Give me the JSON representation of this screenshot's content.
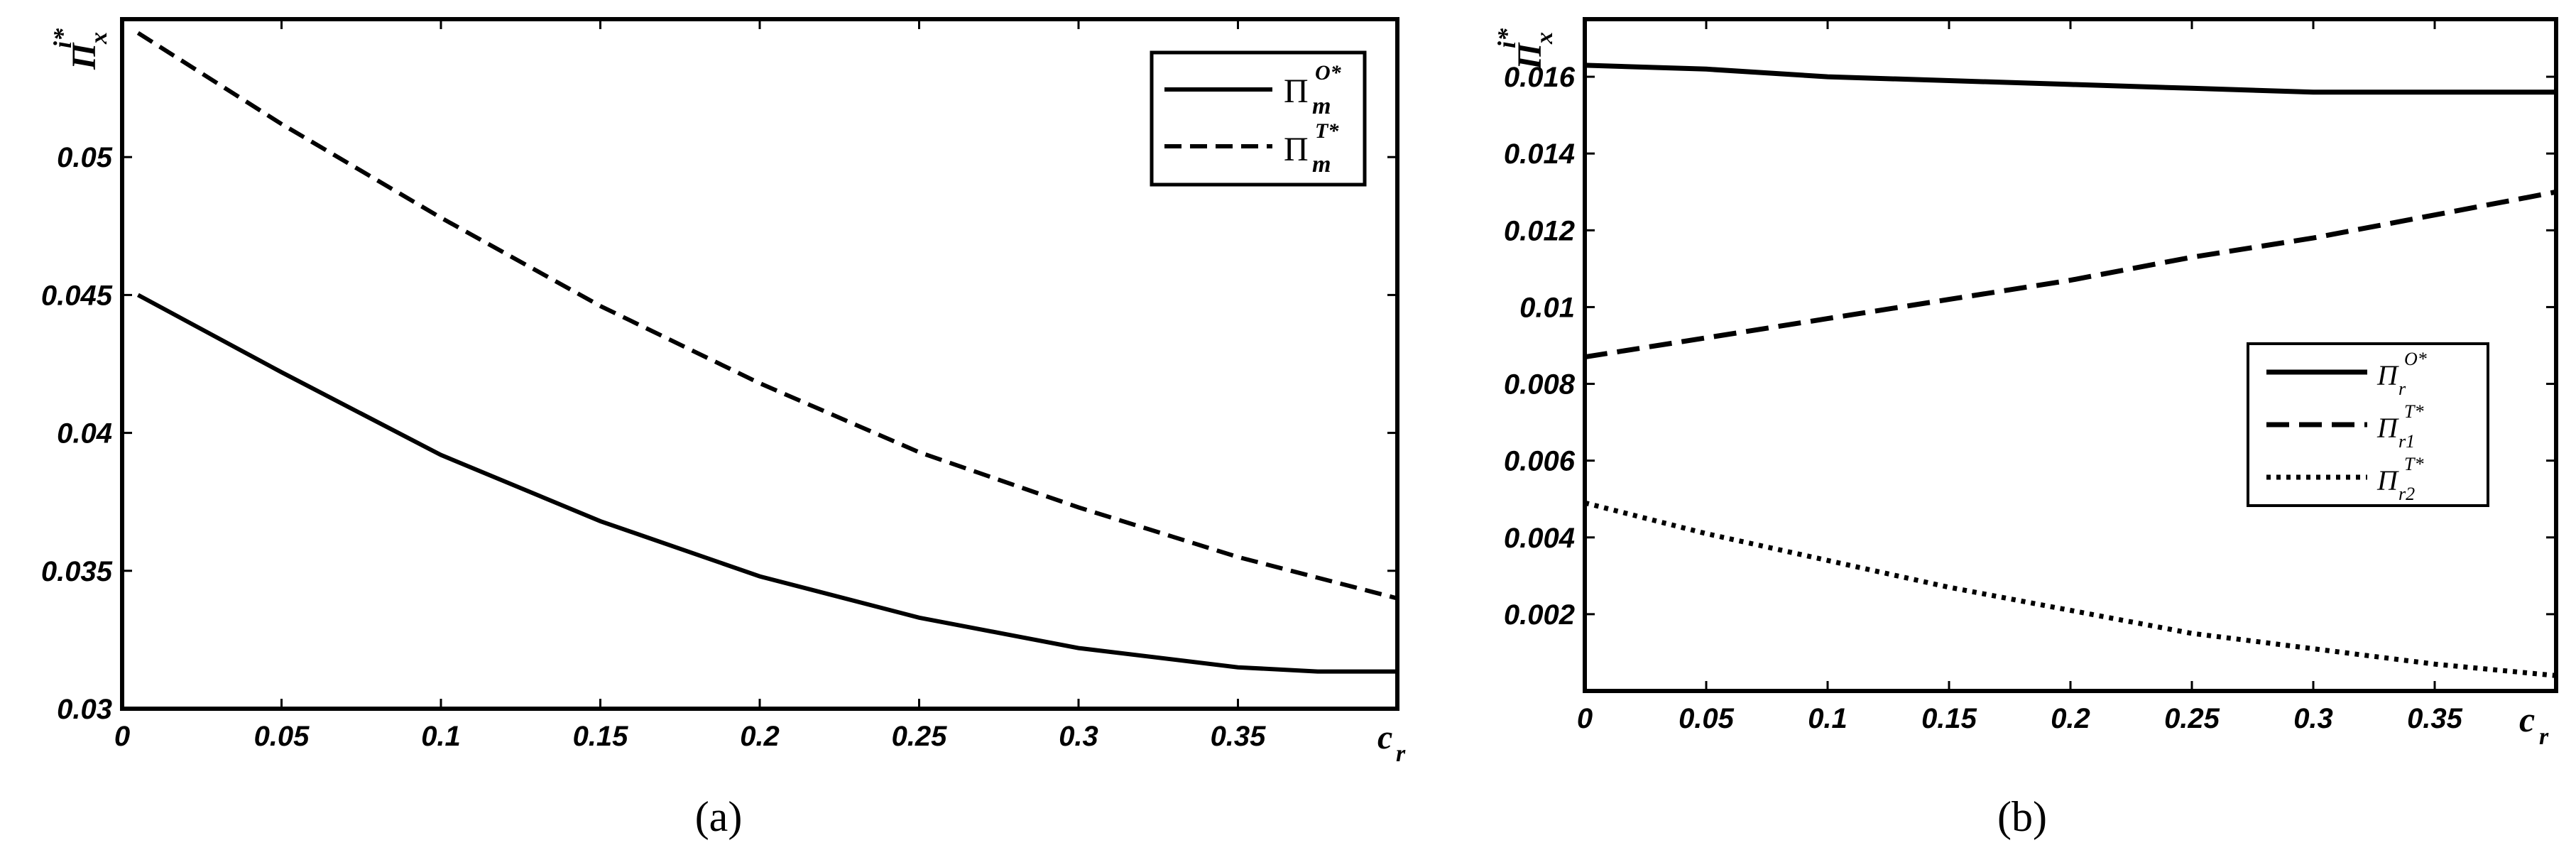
{
  "chart_data": [
    {
      "type": "line",
      "caption": "(a)",
      "xlabel": "c",
      "xlabel_sub": "r",
      "ylabel": "Π",
      "ylabel_sup": "i*",
      "ylabel_sub": "x",
      "xlim": [
        0,
        0.4
      ],
      "ylim": [
        0.03,
        0.055
      ],
      "xticks": [
        0,
        0.05,
        0.1,
        0.15,
        0.2,
        0.25,
        0.3,
        0.35
      ],
      "xtick_labels": [
        "0",
        "0.05",
        "0.1",
        "0.15",
        "0.2",
        "0.25",
        "0.3",
        "0.35"
      ],
      "yticks": [
        0.03,
        0.035,
        0.04,
        0.045,
        0.05
      ],
      "ytick_labels": [
        "0.03",
        "0.035",
        "0.04",
        "0.045",
        "0.05"
      ],
      "legend_position": "top-right",
      "series": [
        {
          "label": "Π",
          "label_sup": "O*",
          "label_sub": "m",
          "style": "solid",
          "x": [
            0.005,
            0.05,
            0.1,
            0.15,
            0.2,
            0.25,
            0.3,
            0.35,
            0.375,
            0.4
          ],
          "y": [
            0.045,
            0.0422,
            0.0392,
            0.0368,
            0.0348,
            0.0333,
            0.0322,
            0.0315,
            0.03135,
            0.03135
          ]
        },
        {
          "label": "Π",
          "label_sup": "T*",
          "label_sub": "m",
          "style": "dashed",
          "x": [
            0.005,
            0.05,
            0.1,
            0.15,
            0.2,
            0.25,
            0.3,
            0.35,
            0.4
          ],
          "y": [
            0.0545,
            0.0512,
            0.0478,
            0.0446,
            0.0418,
            0.0393,
            0.0373,
            0.0355,
            0.034
          ]
        }
      ]
    },
    {
      "type": "line",
      "caption": "(b)",
      "xlabel": "c",
      "xlabel_sub": "r",
      "ylabel": "Π",
      "ylabel_sup": "i*",
      "ylabel_sub": "x",
      "xlim": [
        0,
        0.4
      ],
      "ylim": [
        0,
        0.0175
      ],
      "xticks": [
        0,
        0.05,
        0.1,
        0.15,
        0.2,
        0.25,
        0.3,
        0.35
      ],
      "xtick_labels": [
        "0",
        "0.05",
        "0.1",
        "0.15",
        "0.2",
        "0.25",
        "0.3",
        "0.35"
      ],
      "yticks": [
        0.002,
        0.004,
        0.006,
        0.008,
        0.01,
        0.012,
        0.014,
        0.016
      ],
      "ytick_labels": [
        "0.002",
        "0.004",
        "0.006",
        "0.008",
        "0.01",
        "0.012",
        "0.014",
        "0.016"
      ],
      "legend_position": "center-right",
      "series": [
        {
          "label": "Π",
          "label_sup": "O*",
          "label_sub": "r",
          "style": "solid",
          "x": [
            0,
            0.05,
            0.1,
            0.15,
            0.2,
            0.25,
            0.3,
            0.35,
            0.4
          ],
          "y": [
            0.0163,
            0.0162,
            0.016,
            0.0159,
            0.0158,
            0.0157,
            0.0156,
            0.0156,
            0.0156
          ]
        },
        {
          "label": "Π",
          "label_sup": "T*",
          "label_sub": "r1",
          "style": "dashed",
          "x": [
            0,
            0.05,
            0.1,
            0.15,
            0.2,
            0.25,
            0.3,
            0.35,
            0.4
          ],
          "y": [
            0.0087,
            0.0092,
            0.0097,
            0.0102,
            0.0107,
            0.0113,
            0.0118,
            0.0124,
            0.013
          ]
        },
        {
          "label": "Π",
          "label_sup": "T*",
          "label_sub": "r2",
          "style": "dotted",
          "x": [
            0,
            0.05,
            0.1,
            0.15,
            0.2,
            0.25,
            0.3,
            0.35,
            0.4
          ],
          "y": [
            0.0049,
            0.0041,
            0.0034,
            0.0027,
            0.0021,
            0.0015,
            0.0011,
            0.0007,
            0.0004
          ]
        }
      ]
    }
  ]
}
